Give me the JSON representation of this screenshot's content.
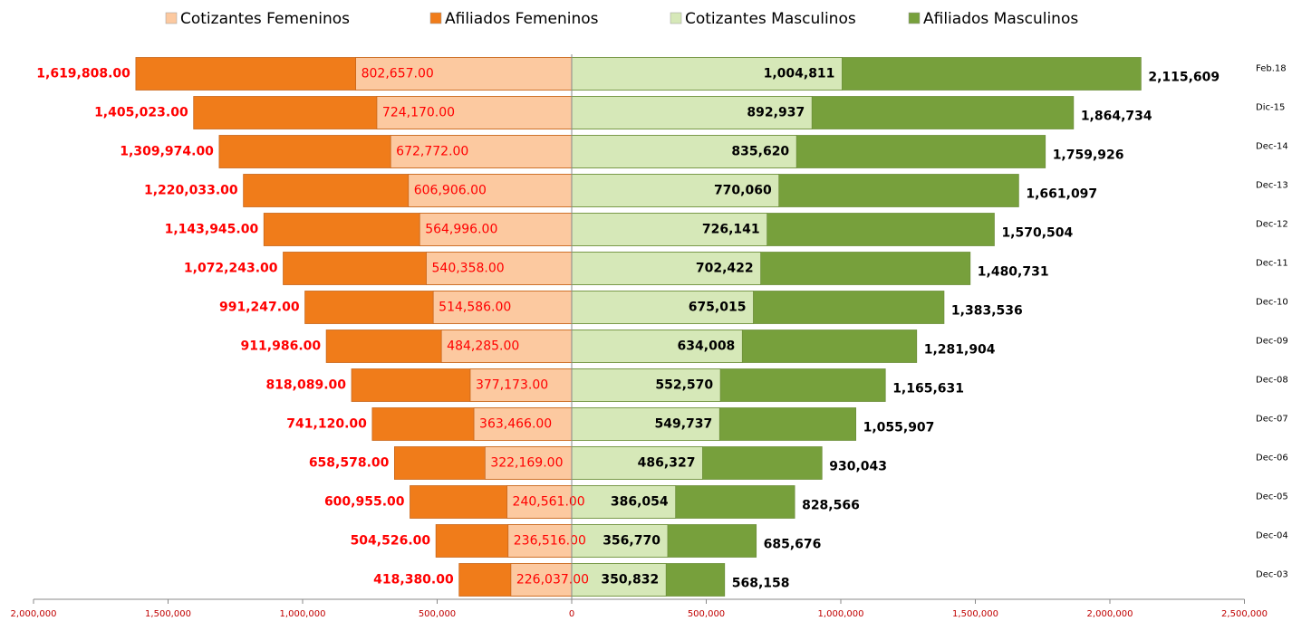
{
  "chart_data": {
    "type": "pyramid",
    "categories": [
      "Feb.18",
      "Dic-15",
      "Dec-14",
      "Dec-13",
      "Dec-12",
      "Dec-11",
      "Dec-10",
      "Dec-09",
      "Dec-08",
      "Dec-07",
      "Dec-06",
      "Dec-05",
      "Dec-04",
      "Dec-03"
    ],
    "series": [
      {
        "name": "Cotizantes Femeninos",
        "color": "#fcc9a0",
        "values": [
          802657,
          724170,
          672772,
          606906,
          564996,
          540358,
          514586,
          484285,
          377173,
          363466,
          322169,
          240561,
          236516,
          226037
        ],
        "value_labels": [
          "802,657.00",
          "724,170.00",
          "672,772.00",
          "606,906.00",
          "564,996.00",
          "540,358.00",
          "514,586.00",
          "484,285.00",
          "377,173.00",
          "363,466.00",
          "322,169.00",
          "240,561.00",
          "236,516.00",
          "226,037.00"
        ]
      },
      {
        "name": "Afiliados Femeninos",
        "color": "#f07c1a",
        "values": [
          1619808,
          1405023,
          1309974,
          1220033,
          1143945,
          1072243,
          991247,
          911986,
          818089,
          741120,
          658578,
          600955,
          504526,
          418380
        ],
        "value_labels": [
          "1,619,808.00",
          "1,405,023.00",
          "1,309,974.00",
          "1,220,033.00",
          "1,143,945.00",
          "1,072,243.00",
          "991,247.00",
          "911,986.00",
          "818,089.00",
          "741,120.00",
          "658,578.00",
          "600,955.00",
          "504,526.00",
          "418,380.00"
        ]
      },
      {
        "name": "Cotizantes Masculinos",
        "color": "#d6e8b8",
        "values": [
          1004811,
          892937,
          835620,
          770060,
          726141,
          702422,
          675015,
          634008,
          552570,
          549737,
          486327,
          386054,
          356770,
          350832
        ],
        "value_labels": [
          "1,004,811",
          "892,937",
          "835,620",
          "770,060",
          "726,141",
          "702,422",
          "675,015",
          "634,008",
          "552,570",
          "549,737",
          "486,327",
          "386,054",
          "356,770",
          "350,832"
        ]
      },
      {
        "name": "Afiliados Masculinos",
        "color": "#77a03c",
        "values": [
          2115609,
          1864734,
          1759926,
          1661097,
          1570504,
          1480731,
          1383536,
          1281904,
          1165631,
          1055907,
          930043,
          828566,
          685676,
          568158
        ],
        "value_labels": [
          "2,115,609",
          "1,864,734",
          "1,759,926",
          "1,661,097",
          "1,570,504",
          "1,480,731",
          "1,383,536",
          "1,281,904",
          "1,165,631",
          "1,055,907",
          "930,043",
          "828,566",
          "685,676",
          "568,158"
        ]
      }
    ],
    "xlim": [
      -2000000,
      2500000
    ],
    "xticks": [
      {
        "value": -2000000,
        "label": "2,000,000"
      },
      {
        "value": -1500000,
        "label": "1,500,000"
      },
      {
        "value": -1000000,
        "label": "1,000,000"
      },
      {
        "value": -500000,
        "label": "500,000"
      },
      0,
      {
        "value": 500000,
        "label": "500,000"
      },
      {
        "value": 1000000,
        "label": "1,000,000"
      },
      {
        "value": 1500000,
        "label": "1,500,000"
      },
      {
        "value": 2000000,
        "label": "2,000,000"
      },
      {
        "value": 2500000,
        "label": "2,500,000"
      }
    ]
  }
}
